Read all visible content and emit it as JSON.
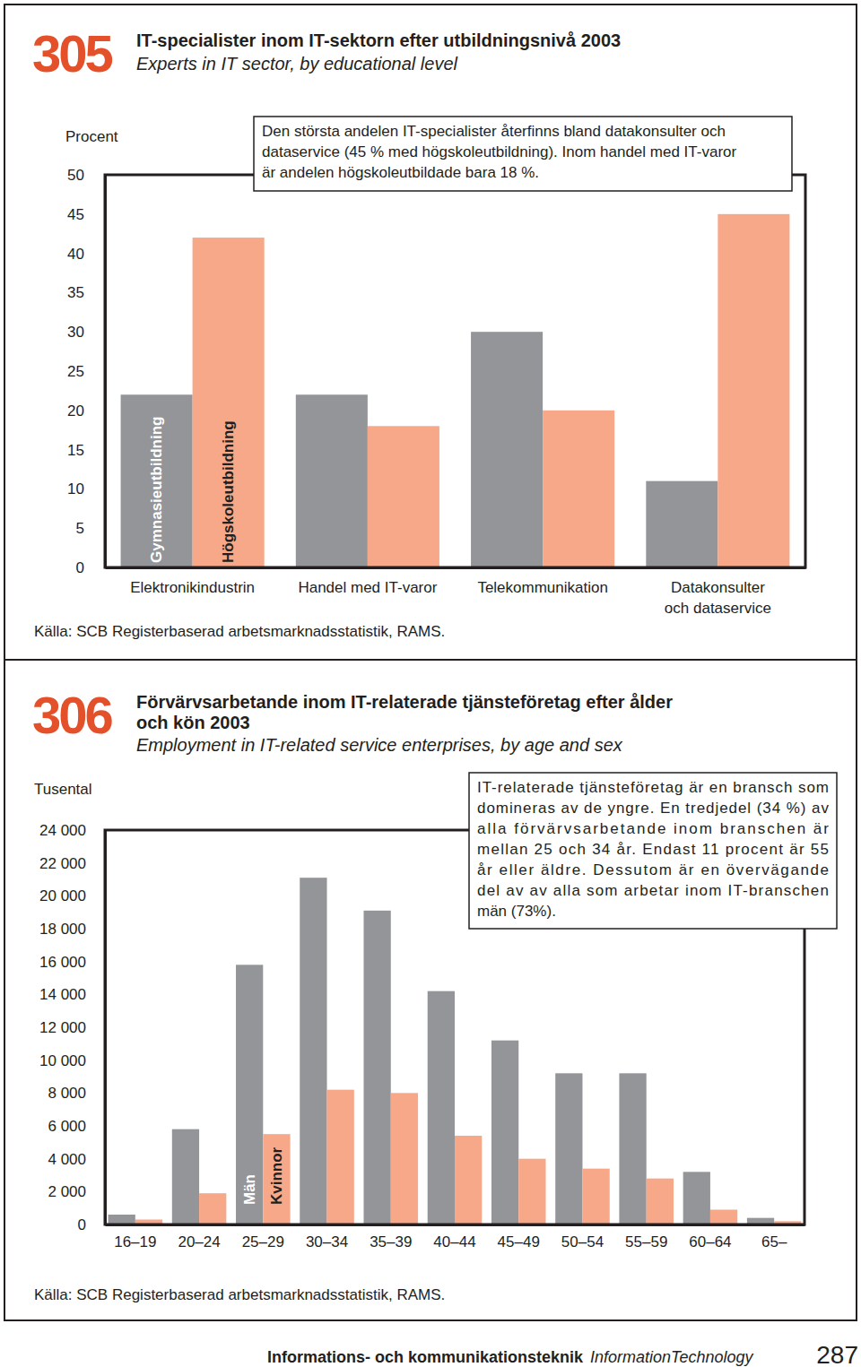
{
  "chart_data": [
    {
      "type": "bar",
      "number": "305",
      "title": "IT-specialister inom IT-sektorn efter utbildningsnivå 2003",
      "subtitle": "Experts in IT sector, by educational level",
      "y_label": "Procent",
      "annotation": "Den största andelen IT-specialister återfinns bland datakonsulter och\ndataservice (45 % med högskoleutbildning). Inom handel med IT-varor\när andelen högskoleutbildade bara 18 %.",
      "source": "Källa: SCB Registerbaserad arbetsmarknadsstatistik, RAMS.",
      "categories": [
        "Elektronikindustrin",
        "Handel med IT-varor",
        "Telekommunikation",
        "Datakonsulter\noch dataservice"
      ],
      "series": [
        {
          "name": "Gymnasieutbildning",
          "color": "#939598",
          "values": [
            22,
            22,
            30,
            11
          ]
        },
        {
          "name": "Högskoleutbildning",
          "color": "#f7a889",
          "values": [
            42,
            18,
            20,
            45
          ]
        }
      ],
      "ylim": [
        0,
        50
      ],
      "yticks": [
        0,
        5,
        10,
        15,
        20,
        25,
        30,
        35,
        40,
        45,
        50
      ],
      "grid": false
    },
    {
      "type": "bar",
      "number": "306",
      "title": "Förvärvsarbetande inom IT-relaterade tjänsteföretag efter ålder\noch kön 2003",
      "subtitle": "Employment in IT-related service enterprises, by age and sex",
      "y_label": "Tusental",
      "annotation": "IT-relaterade tjänsteföretag är en bransch som\ndomineras av de yngre. En tredjedel (34 %) av\nalla förvärvsarbetande inom branschen är\nmellan 25 och 34 år. Endast 11 procent är 55\når eller äldre. Dessutom är en övervägande\ndel av av alla som arbetar inom IT-branschen\nmän (73%).",
      "source": "Källa: SCB Registerbaserad arbetsmarknadsstatistik, RAMS.",
      "categories": [
        "16–19",
        "20–24",
        "25–29",
        "30–34",
        "35–39",
        "40–44",
        "45–49",
        "50–54",
        "55–59",
        "60–64",
        "65–"
      ],
      "series": [
        {
          "name": "Män",
          "color": "#939598",
          "values": [
            600,
            5800,
            15800,
            21100,
            19100,
            14200,
            11200,
            9200,
            9200,
            3200,
            400
          ]
        },
        {
          "name": "Kvinnor",
          "color": "#f7a889",
          "values": [
            300,
            1900,
            5500,
            8200,
            8000,
            5400,
            4000,
            3400,
            2800,
            900,
            200
          ]
        }
      ],
      "ylim": [
        0,
        24000
      ],
      "yticks": [
        0,
        {
          "value": 2000,
          "label": "2 000"
        },
        {
          "value": 4000,
          "label": "4 000"
        },
        {
          "value": 6000,
          "label": "6 000"
        },
        {
          "value": 8000,
          "label": "8 000"
        },
        {
          "value": 10000,
          "label": "10 000"
        },
        {
          "value": 12000,
          "label": "12 000"
        },
        {
          "value": 14000,
          "label": "14 000"
        },
        {
          "value": 16000,
          "label": "16 000"
        },
        {
          "value": 18000,
          "label": "18 000"
        },
        {
          "value": 20000,
          "label": "20 000"
        },
        {
          "value": 22000,
          "label": "22 000"
        },
        {
          "value": 24000,
          "label": "24 000"
        }
      ],
      "grid": false
    }
  ],
  "page": {
    "footer": "Informations- och kommunikationsteknik",
    "footer_en": "InformationTechnology",
    "page_number": "287"
  }
}
